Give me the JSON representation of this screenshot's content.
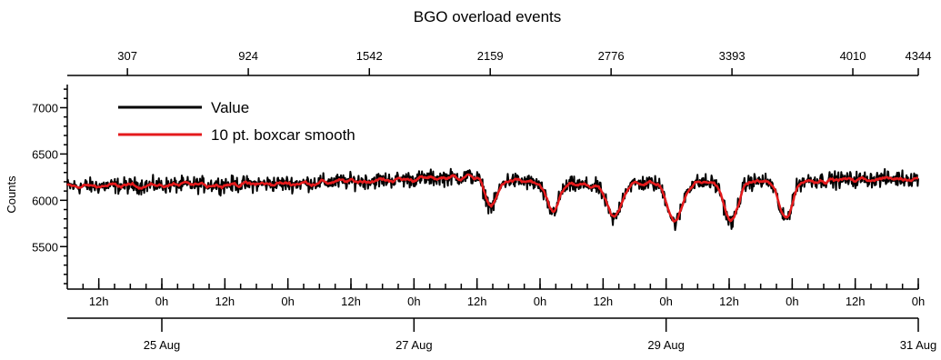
{
  "chart_data": {
    "type": "line",
    "title": "BGO overload events",
    "ylabel": "Counts",
    "ylim": [
      5100,
      7250
    ],
    "yticks": [
      5500,
      6000,
      6500,
      7000
    ],
    "yticks_minor_step": 100,
    "top_axis": {
      "range": [
        0,
        4344
      ],
      "ticks": [
        307,
        924,
        1542,
        2159,
        2776,
        3393,
        4010,
        4344
      ]
    },
    "time_axis": {
      "start": "2024-08-24T06:00:00",
      "end": "2024-08-31T00:00:00",
      "hour_labels": [
        {
          "at": "2024-08-24T12:00:00",
          "label": "12h"
        },
        {
          "at": "2024-08-25T00:00:00",
          "label": "0h"
        },
        {
          "at": "2024-08-25T12:00:00",
          "label": "12h"
        },
        {
          "at": "2024-08-26T00:00:00",
          "label": "0h"
        },
        {
          "at": "2024-08-26T12:00:00",
          "label": "12h"
        },
        {
          "at": "2024-08-27T00:00:00",
          "label": "0h"
        },
        {
          "at": "2024-08-27T12:00:00",
          "label": "12h"
        },
        {
          "at": "2024-08-28T00:00:00",
          "label": "0h"
        },
        {
          "at": "2024-08-28T12:00:00",
          "label": "12h"
        },
        {
          "at": "2024-08-29T00:00:00",
          "label": "0h"
        },
        {
          "at": "2024-08-29T12:00:00",
          "label": "12h"
        },
        {
          "at": "2024-08-30T00:00:00",
          "label": "0h"
        },
        {
          "at": "2024-08-30T12:00:00",
          "label": "12h"
        },
        {
          "at": "2024-08-31T00:00:00",
          "label": "0h"
        }
      ],
      "minor_tick_hours": 3,
      "date_labels": [
        {
          "at": "2024-08-25T00:00:00",
          "label": "25 Aug"
        },
        {
          "at": "2024-08-27T00:00:00",
          "label": "27 Aug"
        },
        {
          "at": "2024-08-29T00:00:00",
          "label": "29 Aug"
        },
        {
          "at": "2024-08-31T00:00:00",
          "label": "31 Aug"
        }
      ]
    },
    "series": [
      {
        "name": "Value",
        "color": "#000000",
        "noise_amplitude": 85
      },
      {
        "name": "10 pt. boxcar smooth",
        "color": "#e41a1c",
        "noise_amplitude": 0
      }
    ],
    "baseline": [
      [
        "2024-08-24T06:00:00",
        6150
      ],
      [
        "2024-08-26T00:00:00",
        6180
      ],
      [
        "2024-08-27T00:00:00",
        6230
      ],
      [
        "2024-08-27T12:00:00",
        6260
      ],
      [
        "2024-08-28T00:00:00",
        6180
      ],
      [
        "2024-08-28T12:00:00",
        6150
      ],
      [
        "2024-08-28T18:00:00",
        6180
      ],
      [
        "2024-08-30T00:00:00",
        6210
      ],
      [
        "2024-08-31T00:00:00",
        6240
      ]
    ],
    "dips": [
      {
        "at": "2024-08-27T14:40:00",
        "depth": 310,
        "width_hours": 2.3
      },
      {
        "at": "2024-08-28T02:20:00",
        "depth": 300,
        "width_hours": 2.3
      },
      {
        "at": "2024-08-28T14:00:00",
        "depth": 360,
        "width_hours": 2.5
      },
      {
        "at": "2024-08-29T01:40:00",
        "depth": 430,
        "width_hours": 2.6
      },
      {
        "at": "2024-08-29T12:20:00",
        "depth": 440,
        "width_hours": 2.5
      },
      {
        "at": "2024-08-29T22:40:00",
        "depth": 420,
        "width_hours": 2.4
      }
    ]
  }
}
